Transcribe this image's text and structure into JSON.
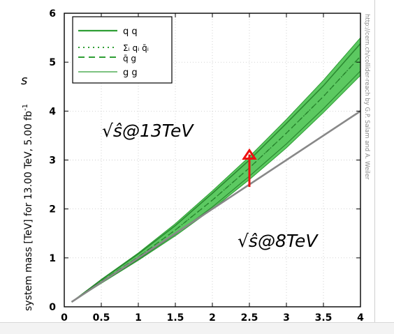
{
  "chart_data": {
    "type": "line",
    "xlabel": "",
    "ylabel": "system mass [TeV] for 13.00 TeV, 5.00 fb",
    "ylabel_sup": "-1",
    "xlim": [
      0,
      4
    ],
    "ylim": [
      0,
      6
    ],
    "xticks": [
      "0",
      "0.5",
      "1",
      "1.5",
      "2",
      "2.5",
      "3",
      "3.5",
      "4"
    ],
    "yticks": [
      "0",
      "1",
      "2",
      "3",
      "4",
      "5",
      "6"
    ],
    "grid": true,
    "legend_position": "top-left",
    "legend": [
      {
        "label": "q q",
        "style": "solid"
      },
      {
        "label": "Σᵢ qᵢ q̄ᵢ",
        "style": "dotted"
      },
      {
        "label": "q̄ g",
        "style": "dashed"
      },
      {
        "label": "g g",
        "style": "solid-thin"
      }
    ],
    "series": [
      {
        "name": "q q",
        "x": [
          0.1,
          0.5,
          1,
          1.5,
          2,
          2.5,
          3,
          3.5,
          4
        ],
        "y": [
          0.1,
          0.55,
          1.08,
          1.66,
          2.32,
          3.0,
          3.75,
          4.52,
          5.38
        ]
      },
      {
        "name": "Σᵢ qᵢ q̄ᵢ",
        "x": [
          0.1,
          0.5,
          1,
          1.5,
          2,
          2.5,
          3,
          3.5,
          4
        ],
        "y": [
          0.1,
          0.52,
          1.02,
          1.57,
          2.18,
          2.84,
          3.55,
          4.3,
          5.12
        ]
      },
      {
        "name": "q̄ g",
        "x": [
          0.1,
          0.5,
          1,
          1.5,
          2,
          2.5,
          3,
          3.5,
          4
        ],
        "y": [
          0.1,
          0.52,
          1.02,
          1.57,
          2.18,
          2.84,
          3.55,
          4.3,
          5.12
        ]
      },
      {
        "name": "g g",
        "x": [
          0.1,
          0.5,
          1,
          1.5,
          2,
          2.5,
          3,
          3.5,
          4
        ],
        "y": [
          0.1,
          0.49,
          0.97,
          1.48,
          2.04,
          2.67,
          3.33,
          4.05,
          4.82
        ]
      }
    ],
    "band": {
      "x": [
        0.1,
        0.5,
        1,
        1.5,
        2,
        2.5,
        3,
        3.5,
        4
      ],
      "upper": [
        0.1,
        0.56,
        1.1,
        1.7,
        2.37,
        3.07,
        3.83,
        4.63,
        5.5
      ],
      "lower": [
        0.1,
        0.48,
        0.95,
        1.45,
        2.0,
        2.6,
        3.25,
        3.97,
        4.73
      ]
    },
    "reference_line": {
      "x": [
        0.1,
        4
      ],
      "y": [
        0.1,
        4
      ]
    },
    "annotations": {
      "label_13": "√ŝ@13TeV",
      "label_8": "√ŝ@8TeV",
      "ylabel_overlay": "s",
      "credit": "http://cern.ch/collider-reach by G.P. Salam and A. Weiler"
    },
    "arrow": {
      "x": 2.5,
      "y_from": 2.45,
      "y_to": 3.2
    }
  },
  "colors": {
    "band_fill": "#3fbf45",
    "band_line": "#2e9e34",
    "reference_line": "#888888",
    "arrow": "#ee1111",
    "axes": "#000000",
    "grid": "#bdbdbd"
  }
}
